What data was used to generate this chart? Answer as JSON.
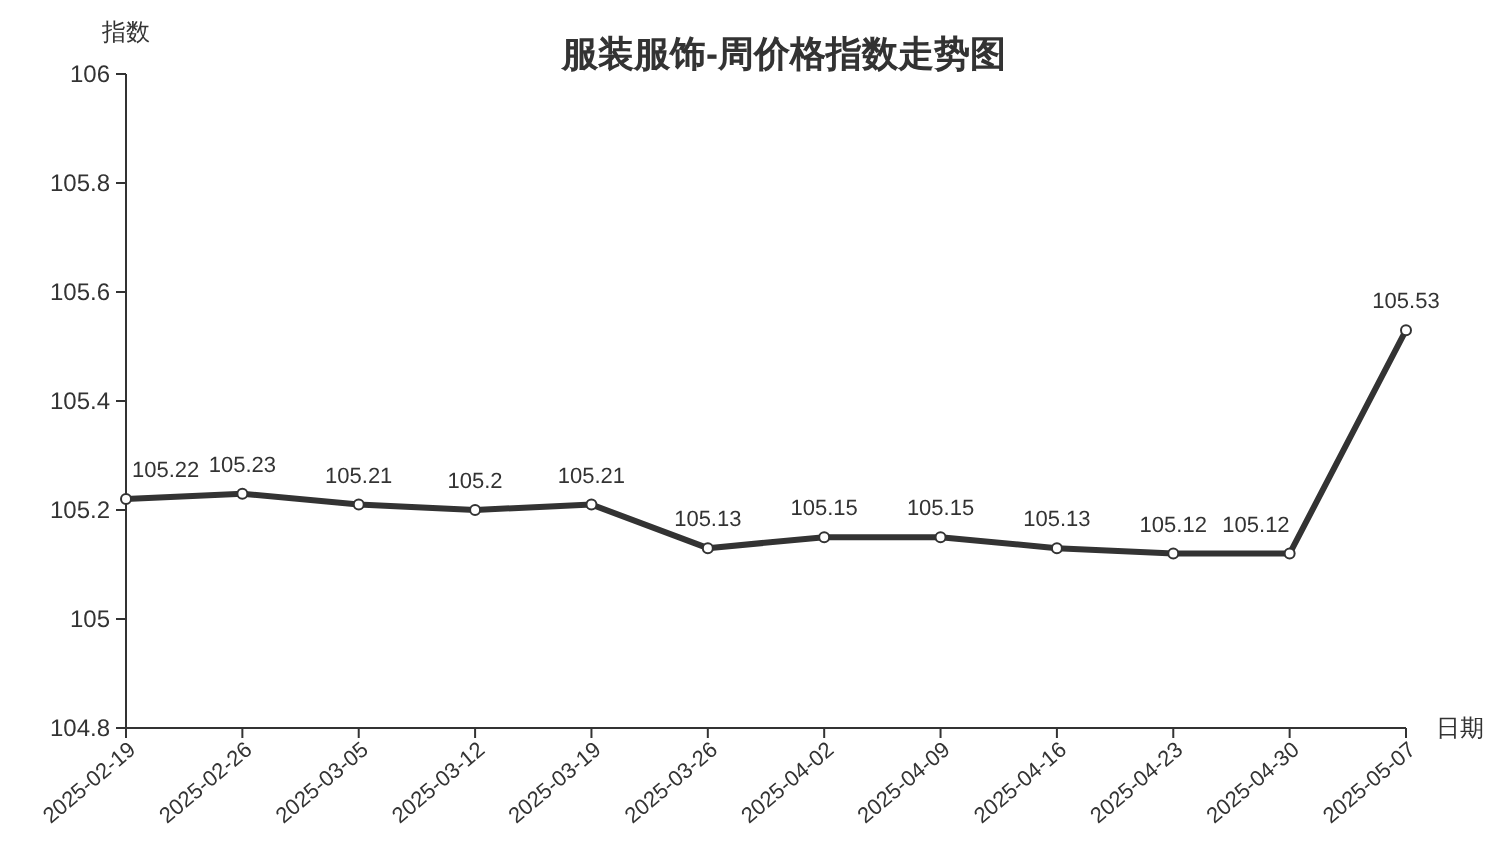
{
  "chart_data": {
    "type": "line",
    "title": "服装服饰-周价格指数走势图",
    "xlabel": "日期",
    "ylabel": "指数",
    "categories": [
      "2025-02-19",
      "2025-02-26",
      "2025-03-05",
      "2025-03-12",
      "2025-03-19",
      "2025-03-26",
      "2025-04-02",
      "2025-04-09",
      "2025-04-16",
      "2025-04-23",
      "2025-04-30",
      "2025-05-07"
    ],
    "series": [
      {
        "color": "#333333",
        "values": [
          105.22,
          105.23,
          105.21,
          105.2,
          105.21,
          105.13,
          105.15,
          105.15,
          105.13,
          105.12,
          105.12,
          105.53
        ]
      }
    ],
    "ylim": [
      104.8,
      106
    ],
    "yticks": [
      104.8,
      105,
      105.2,
      105.4,
      105.6,
      105.8,
      106
    ],
    "data_labels": true,
    "marker": "circle",
    "line_style": "solid"
  }
}
